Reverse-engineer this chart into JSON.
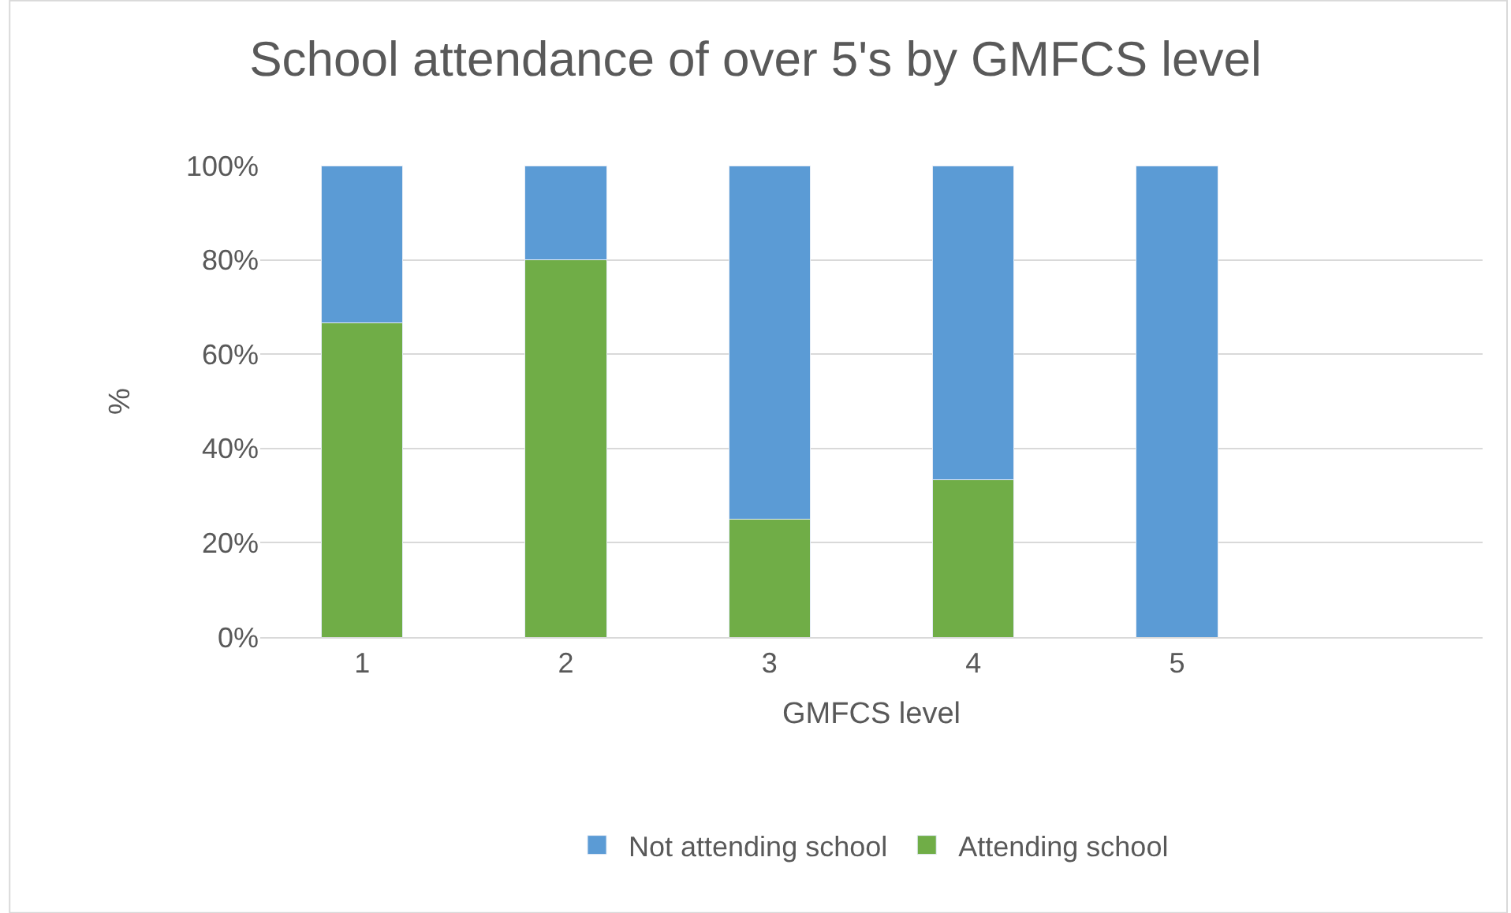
{
  "chart_data": {
    "type": "bar",
    "stacked": true,
    "title": "School attendance of over 5's by GMFCS level",
    "xlabel": "GMFCS level",
    "ylabel": "%",
    "categories": [
      "1",
      "2",
      "3",
      "4",
      "5",
      null
    ],
    "series": [
      {
        "name": "Attending school",
        "color": "#70ad47",
        "values": [
          66.7,
          80,
          25,
          33.3,
          0,
          null
        ]
      },
      {
        "name": "Not attending school",
        "color": "#5b9bd5",
        "values": [
          33.3,
          20,
          75,
          66.7,
          100,
          null
        ]
      }
    ],
    "ylim": [
      0,
      100
    ],
    "yticks": [
      {
        "value": 0,
        "label": "0%"
      },
      {
        "value": 20,
        "label": "20%"
      },
      {
        "value": 40,
        "label": "40%"
      },
      {
        "value": 60,
        "label": "60%"
      },
      {
        "value": 80,
        "label": "80%"
      },
      {
        "value": 100,
        "label": "100%"
      }
    ],
    "grid": "y",
    "legend": "bottom"
  }
}
